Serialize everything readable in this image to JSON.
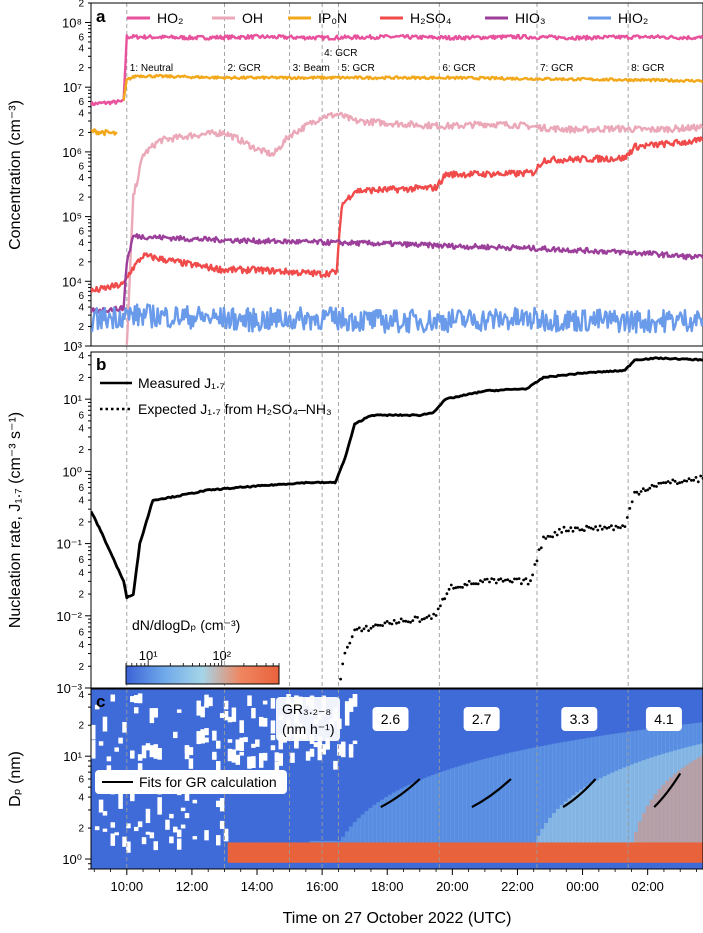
{
  "figure": {
    "x_label": "Time on 27 October 2022 (UTC)",
    "x_ticks": [
      "10:00",
      "12:00",
      "14:00",
      "16:00",
      "18:00",
      "20:00",
      "22:00",
      "00:00",
      "02:00"
    ]
  },
  "chart_data": [
    {
      "panel": "a",
      "type": "line",
      "ylabel": "Concentration (cm⁻³)",
      "yscale": "log",
      "ylim": [
        1000,
        200000000
      ],
      "xlim_hours": [
        8.9,
        27.7
      ],
      "x_unit": "hours from 00:00 on 27 October 2022",
      "legend": {
        "placement": "top",
        "entries": [
          {
            "label": "HO₂",
            "color": "#e8529c"
          },
          {
            "label": "OH",
            "color": "#eba8b8"
          },
          {
            "label": "IP₀N",
            "color": "#f2a81a"
          },
          {
            "label": "H₂SO₄",
            "color": "#f04a4a"
          },
          {
            "label": "HIO₃",
            "color": "#9b3f9b"
          },
          {
            "label": "HIO₂",
            "color": "#6a9bea"
          }
        ]
      },
      "stages": [
        {
          "label": "1: Neutral",
          "x": 10.0
        },
        {
          "label": "2: GCR",
          "x": 13.0
        },
        {
          "label": "3: Beam",
          "x": 15.0
        },
        {
          "label": "4: GCR",
          "x": 16.0
        },
        {
          "label": "5: GCR",
          "x": 16.5
        },
        {
          "label": "6: GCR",
          "x": 19.6
        },
        {
          "label": "7: GCR",
          "x": 22.6
        },
        {
          "label": "8: GCR",
          "x": 25.4
        }
      ],
      "series": [
        {
          "name": "HO₂",
          "color": "#e8529c",
          "x": [
            8.9,
            9.9,
            10.0,
            10.3,
            12.0,
            14.0,
            16.0,
            18.0,
            20.0,
            22.0,
            24.0,
            26.0,
            27.7
          ],
          "y": [
            5500000,
            6000000,
            60000000,
            60000000,
            58000000,
            60000000,
            58000000,
            60000000,
            58000000,
            60000000,
            58000000,
            60000000,
            58000000
          ]
        },
        {
          "name": "OH",
          "color": "#eba8b8",
          "x": [
            10.0,
            10.2,
            10.5,
            11.0,
            12.0,
            13.0,
            13.5,
            14.0,
            14.5,
            15.0,
            15.5,
            16.0,
            16.5,
            17.0,
            18.0,
            19.0,
            20.0,
            21.0,
            22.0,
            23.0,
            24.0,
            25.0,
            26.0,
            27.0,
            27.7
          ],
          "y": [
            1000,
            200000,
            900000,
            1500000,
            1800000,
            2000000,
            1500000,
            1100000,
            900000,
            1800000,
            2500000,
            3500000,
            3800000,
            3000000,
            2800000,
            2600000,
            2500000,
            2700000,
            2600000,
            2300000,
            2200000,
            2300000,
            2200000,
            2300000,
            2400000
          ]
        },
        {
          "name": "IP₀N (1)",
          "color": "#f2a81a",
          "x": [
            8.9,
            9.7
          ],
          "y": [
            2100000,
            1900000
          ]
        },
        {
          "name": "IP₀N (2)",
          "color": "#f2a81a",
          "x": [
            9.9,
            10.0,
            10.3,
            13.0,
            16.0,
            19.6,
            22.6,
            25.4,
            27.7
          ],
          "y": [
            6000000,
            13000000,
            15000000,
            14000000,
            14000000,
            14000000,
            13500000,
            13000000,
            12500000
          ]
        },
        {
          "name": "H₂SO₄",
          "color": "#f04a4a",
          "x": [
            8.9,
            9.9,
            10.1,
            10.5,
            12.0,
            13.0,
            14.0,
            16.0,
            16.45,
            16.6,
            17.0,
            18.0,
            19.5,
            19.8,
            22.0,
            22.5,
            22.8,
            25.3,
            25.6,
            27.7
          ],
          "y": [
            7000,
            9000,
            14000,
            25000,
            18000,
            15000,
            15000,
            13000,
            14000,
            150000,
            250000,
            260000,
            280000,
            450000,
            460000,
            480000,
            750000,
            800000,
            1200000,
            1500000
          ]
        },
        {
          "name": "HIO₃",
          "color": "#9b3f9b",
          "x": [
            8.9,
            9.9,
            10.0,
            10.2,
            12.0,
            14.0,
            16.0,
            18.0,
            20.0,
            22.0,
            24.0,
            26.0,
            27.7
          ],
          "y": [
            3500,
            3800,
            20000,
            50000,
            45000,
            42000,
            40000,
            38000,
            35000,
            33000,
            30000,
            27000,
            23000
          ]
        },
        {
          "name": "HIO₂",
          "color": "#6a9bea",
          "x": [
            8.9,
            10.0,
            12.0,
            14.0,
            16.0,
            18.0,
            20.0,
            22.0,
            24.0,
            26.0,
            27.7
          ],
          "y": [
            2500,
            3000,
            2800,
            2500,
            2700,
            2400,
            2500,
            2600,
            2500,
            2400,
            2600
          ]
        }
      ]
    },
    {
      "panel": "b",
      "type": "line",
      "ylabel": "Nucleation rate, J₁.₇ (cm⁻³ s⁻¹)",
      "yscale": "log",
      "ylim": [
        0.001,
        45
      ],
      "legend": {
        "placement": "top-left",
        "entries": [
          {
            "label": "Measured J₁.₇",
            "style": "solid"
          },
          {
            "label": "Expected J₁.₇ from H₂SO₄–NH₃",
            "style": "dotted"
          }
        ]
      },
      "series": [
        {
          "name": "Measured J₁.₇",
          "style": "solid",
          "x": [
            8.9,
            9.2,
            9.6,
            9.9,
            10.0,
            10.2,
            10.4,
            10.8,
            11.5,
            12.5,
            13.5,
            14.5,
            15.5,
            16.4,
            16.7,
            17.0,
            17.5,
            18.0,
            19.0,
            19.4,
            19.8,
            21.0,
            22.3,
            22.8,
            24.0,
            25.3,
            25.6,
            26.3,
            27.7
          ],
          "y": [
            0.28,
            0.15,
            0.06,
            0.03,
            0.018,
            0.02,
            0.1,
            0.4,
            0.45,
            0.55,
            0.6,
            0.65,
            0.7,
            0.7,
            1.5,
            4.5,
            6.0,
            6.0,
            6.0,
            6.5,
            10.0,
            13.0,
            14.0,
            20.0,
            23.0,
            25.0,
            35.0,
            37.0,
            35.0
          ]
        },
        {
          "name": "Expected J₁.₇ from H₂SO₄–NH₃",
          "style": "dotted",
          "x": [
            16.5,
            16.7,
            17.0,
            18.0,
            19.0,
            19.5,
            19.9,
            21.0,
            22.4,
            22.8,
            23.5,
            25.3,
            25.6,
            26.2,
            27.7
          ],
          "y": [
            0.001,
            0.003,
            0.006,
            0.008,
            0.009,
            0.01,
            0.025,
            0.03,
            0.03,
            0.12,
            0.16,
            0.17,
            0.5,
            0.65,
            0.8
          ]
        }
      ],
      "colorbar": {
        "label": "dN/dlogDₚ (cm⁻³)",
        "scale": "log",
        "range": [
          5,
          600
        ],
        "tick_labels": [
          "10¹",
          "10²"
        ],
        "colormap": [
          "#3b62d6",
          "#6fa9ea",
          "#a6d5e8",
          "#ef8660",
          "#e8623c"
        ]
      }
    },
    {
      "panel": "c",
      "type": "heatmap",
      "ylabel": "Dₚ (nm)",
      "yscale": "log",
      "ylim": [
        0.8,
        45
      ],
      "growth_rate_header": "GR₃.₂₋₈\n(nm h⁻¹)",
      "growth_rates": [
        {
          "label": "2.6",
          "x": 18.1
        },
        {
          "label": "2.7",
          "x": 20.9
        },
        {
          "label": "3.3",
          "x": 23.9
        },
        {
          "label": "4.1",
          "x": 26.5
        }
      ],
      "legend": {
        "placement": "left",
        "entries": [
          {
            "label": "Fits for GR calculation",
            "style": "solid"
          }
        ]
      },
      "fits": [
        {
          "x": [
            17.8,
            19.0
          ],
          "y": [
            3.2,
            6.0
          ]
        },
        {
          "x": [
            20.6,
            21.8
          ],
          "y": [
            3.2,
            6.0
          ]
        },
        {
          "x": [
            23.4,
            24.4
          ],
          "y": [
            3.2,
            6.0
          ]
        },
        {
          "x": [
            26.2,
            27.0
          ],
          "y": [
            3.2,
            6.8
          ]
        }
      ]
    }
  ],
  "panel_labels": [
    "a",
    "b",
    "c"
  ],
  "texts": {
    "panel_a_ylabel": "Concentration (cm⁻³)",
    "panel_b_ylabel": "Nucleation rate, J₁.₇ (cm⁻³ s⁻¹)",
    "panel_c_ylabel": "Dₚ (nm)",
    "colorbar_label": "dN/dlogDₚ (cm⁻³)"
  }
}
